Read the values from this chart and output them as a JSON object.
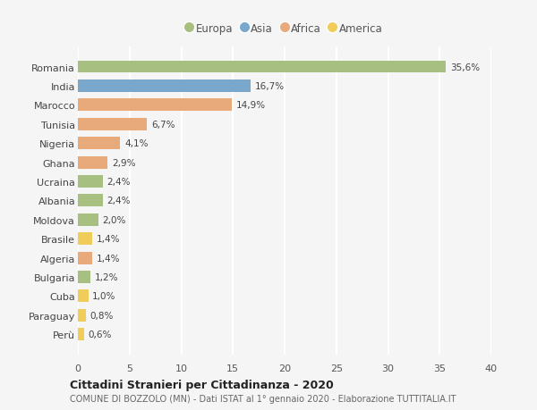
{
  "countries": [
    "Romania",
    "India",
    "Marocco",
    "Tunisia",
    "Nigeria",
    "Ghana",
    "Ucraina",
    "Albania",
    "Moldova",
    "Brasile",
    "Algeria",
    "Bulgaria",
    "Cuba",
    "Paraguay",
    "Perù"
  ],
  "values": [
    35.6,
    16.7,
    14.9,
    6.7,
    4.1,
    2.9,
    2.4,
    2.4,
    2.0,
    1.4,
    1.4,
    1.2,
    1.0,
    0.8,
    0.6
  ],
  "labels": [
    "35,6%",
    "16,7%",
    "14,9%",
    "6,7%",
    "4,1%",
    "2,9%",
    "2,4%",
    "2,4%",
    "2,0%",
    "1,4%",
    "1,4%",
    "1,2%",
    "1,0%",
    "0,8%",
    "0,6%"
  ],
  "continents": [
    "Europa",
    "Asia",
    "Africa",
    "Africa",
    "Africa",
    "Africa",
    "Europa",
    "Europa",
    "Europa",
    "America",
    "Africa",
    "Europa",
    "America",
    "America",
    "America"
  ],
  "colors": {
    "Europa": "#a8bf82",
    "Asia": "#7aa7cc",
    "Africa": "#e8aa7a",
    "America": "#f0cc5a"
  },
  "legend_order": [
    "Europa",
    "Asia",
    "Africa",
    "America"
  ],
  "xlim": [
    0,
    40
  ],
  "xticks": [
    0,
    5,
    10,
    15,
    20,
    25,
    30,
    35,
    40
  ],
  "title": "Cittadini Stranieri per Cittadinanza - 2020",
  "subtitle": "COMUNE DI BOZZOLO (MN) - Dati ISTAT al 1° gennaio 2020 - Elaborazione TUTTITALIA.IT",
  "bg_color": "#f5f5f5",
  "grid_color": "#ffffff",
  "bar_height": 0.65
}
